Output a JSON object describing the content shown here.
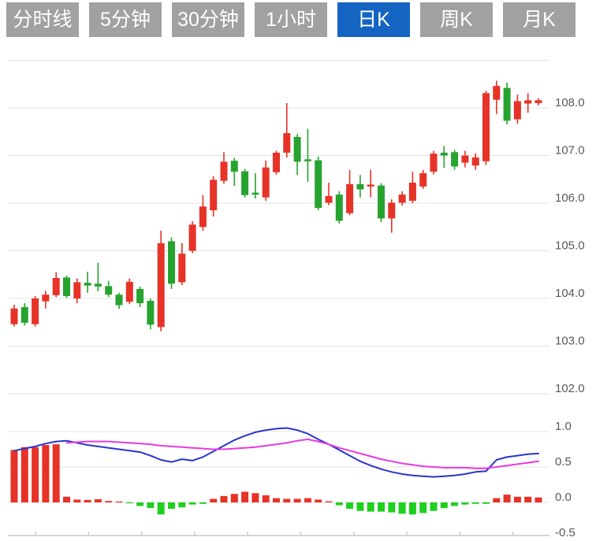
{
  "tab_bar": {
    "tabs": [
      {
        "label": "分时线",
        "active": false
      },
      {
        "label": "5分钟",
        "active": false
      },
      {
        "label": "30分钟",
        "active": false
      },
      {
        "label": "1小时",
        "active": false
      },
      {
        "label": "日K",
        "active": true
      },
      {
        "label": "周K",
        "active": false
      },
      {
        "label": "月K",
        "active": false
      }
    ]
  },
  "colors": {
    "up": "#e73227",
    "down": "#26a32f",
    "macd_up": "#e73227",
    "macd_down": "#1ed01e",
    "dif_line": "#2834cc",
    "dea_line": "#e83ae0",
    "tab_active_bg": "#1464c2",
    "tab_inactive_bg": "#a1a1a1",
    "tab_text": "#ffffff",
    "grid": "#e3e3e3",
    "axis": "#c9c9c9",
    "label": "#595959"
  },
  "chart_data": [
    {
      "type": "candlestick",
      "title": "",
      "ylabel": "price",
      "ylim": [
        102,
        109
      ],
      "grid": true,
      "y_tick_labels": [
        "108.0",
        "107.0",
        "106.0",
        "105.0",
        "104.0",
        "103.0",
        "102.0"
      ],
      "y_tick_values": [
        108,
        107,
        106,
        105,
        104,
        103,
        102
      ],
      "candles": [
        {
          "o": 103.46,
          "h": 103.87,
          "l": 103.41,
          "c": 103.79
        },
        {
          "o": 103.82,
          "h": 103.9,
          "l": 103.43,
          "c": 103.49
        },
        {
          "o": 103.46,
          "h": 104.05,
          "l": 103.41,
          "c": 104.0
        },
        {
          "o": 103.94,
          "h": 104.16,
          "l": 103.79,
          "c": 104.08
        },
        {
          "o": 104.07,
          "h": 104.55,
          "l": 104.03,
          "c": 104.43
        },
        {
          "o": 104.44,
          "h": 104.48,
          "l": 104.01,
          "c": 104.05
        },
        {
          "o": 104.0,
          "h": 104.42,
          "l": 103.9,
          "c": 104.34
        },
        {
          "o": 104.33,
          "h": 104.56,
          "l": 104.12,
          "c": 104.27
        },
        {
          "o": 104.31,
          "h": 104.75,
          "l": 104.15,
          "c": 104.25
        },
        {
          "o": 104.26,
          "h": 104.37,
          "l": 104.03,
          "c": 104.08
        },
        {
          "o": 104.08,
          "h": 104.12,
          "l": 103.78,
          "c": 103.86
        },
        {
          "o": 103.93,
          "h": 104.42,
          "l": 103.88,
          "c": 104.35
        },
        {
          "o": 104.2,
          "h": 104.25,
          "l": 103.82,
          "c": 103.9
        },
        {
          "o": 103.95,
          "h": 104.0,
          "l": 103.35,
          "c": 103.45
        },
        {
          "o": 103.4,
          "h": 105.42,
          "l": 103.31,
          "c": 105.16
        },
        {
          "o": 105.2,
          "h": 105.28,
          "l": 104.2,
          "c": 104.31
        },
        {
          "o": 104.34,
          "h": 105.16,
          "l": 104.28,
          "c": 104.94
        },
        {
          "o": 105.0,
          "h": 105.62,
          "l": 104.95,
          "c": 105.55
        },
        {
          "o": 105.5,
          "h": 106.17,
          "l": 105.42,
          "c": 105.93
        },
        {
          "o": 105.85,
          "h": 106.57,
          "l": 105.72,
          "c": 106.49
        },
        {
          "o": 106.47,
          "h": 107.07,
          "l": 106.41,
          "c": 106.87
        },
        {
          "o": 106.89,
          "h": 106.95,
          "l": 106.36,
          "c": 106.66
        },
        {
          "o": 106.67,
          "h": 106.72,
          "l": 106.12,
          "c": 106.17
        },
        {
          "o": 106.22,
          "h": 106.63,
          "l": 106.1,
          "c": 106.18
        },
        {
          "o": 106.12,
          "h": 106.9,
          "l": 106.05,
          "c": 106.75
        },
        {
          "o": 106.65,
          "h": 107.1,
          "l": 106.6,
          "c": 107.06
        },
        {
          "o": 107.06,
          "h": 108.1,
          "l": 106.96,
          "c": 107.47
        },
        {
          "o": 107.39,
          "h": 107.45,
          "l": 106.59,
          "c": 106.87
        },
        {
          "o": 106.92,
          "h": 107.56,
          "l": 106.45,
          "c": 106.88
        },
        {
          "o": 106.9,
          "h": 106.98,
          "l": 105.85,
          "c": 105.9
        },
        {
          "o": 106.01,
          "h": 106.43,
          "l": 105.96,
          "c": 106.15
        },
        {
          "o": 106.18,
          "h": 106.25,
          "l": 105.57,
          "c": 105.63
        },
        {
          "o": 105.79,
          "h": 106.7,
          "l": 105.75,
          "c": 106.4
        },
        {
          "o": 106.4,
          "h": 106.59,
          "l": 106.12,
          "c": 106.29
        },
        {
          "o": 106.35,
          "h": 106.7,
          "l": 106.12,
          "c": 106.39
        },
        {
          "o": 106.37,
          "h": 106.42,
          "l": 105.6,
          "c": 105.68
        },
        {
          "o": 105.68,
          "h": 106.08,
          "l": 105.38,
          "c": 106.01
        },
        {
          "o": 106.01,
          "h": 106.25,
          "l": 105.95,
          "c": 106.18
        },
        {
          "o": 106.05,
          "h": 106.66,
          "l": 106.0,
          "c": 106.43
        },
        {
          "o": 106.35,
          "h": 106.7,
          "l": 106.3,
          "c": 106.63
        },
        {
          "o": 106.66,
          "h": 107.1,
          "l": 106.6,
          "c": 107.04
        },
        {
          "o": 107.06,
          "h": 107.2,
          "l": 106.74,
          "c": 107.0
        },
        {
          "o": 107.07,
          "h": 107.12,
          "l": 106.7,
          "c": 106.77
        },
        {
          "o": 106.85,
          "h": 107.1,
          "l": 106.75,
          "c": 107.0
        },
        {
          "o": 106.79,
          "h": 107.05,
          "l": 106.7,
          "c": 106.96
        },
        {
          "o": 106.88,
          "h": 108.36,
          "l": 106.8,
          "c": 108.31
        },
        {
          "o": 108.17,
          "h": 108.57,
          "l": 107.87,
          "c": 108.46
        },
        {
          "o": 108.42,
          "h": 108.53,
          "l": 107.65,
          "c": 107.73
        },
        {
          "o": 107.76,
          "h": 108.28,
          "l": 107.67,
          "c": 108.14
        },
        {
          "o": 108.09,
          "h": 108.31,
          "l": 107.9,
          "c": 108.16
        },
        {
          "o": 108.1,
          "h": 108.2,
          "l": 108.05,
          "c": 108.16
        }
      ]
    },
    {
      "type": "macd",
      "title": "",
      "ylim": [
        -0.6,
        1.1
      ],
      "y_tick_labels": [
        "1.0",
        "0.5",
        "0.0",
        "-0.5"
      ],
      "y_tick_values": [
        1.0,
        0.5,
        0.0,
        -0.5
      ],
      "legend_position": "none",
      "histogram": [
        0.74,
        0.78,
        0.78,
        0.81,
        0.82,
        0.08,
        0.04,
        0.035,
        0.045,
        0.02,
        0.012,
        -0.012,
        -0.05,
        -0.08,
        -0.17,
        -0.09,
        -0.07,
        -0.03,
        -0.02,
        0.05,
        0.09,
        0.12,
        0.15,
        0.13,
        0.1,
        0.06,
        0.05,
        0.05,
        0.06,
        0.04,
        0.015,
        -0.04,
        -0.09,
        -0.12,
        -0.13,
        -0.13,
        -0.14,
        -0.16,
        -0.17,
        -0.15,
        -0.12,
        -0.08,
        -0.05,
        -0.03,
        -0.02,
        -0.02,
        0.06,
        0.11,
        0.08,
        0.08,
        0.07
      ],
      "series": [
        {
          "name": "DIF",
          "start_index": 0,
          "values": [
            0.73,
            0.76,
            0.79,
            0.83,
            0.86,
            0.87,
            0.84,
            0.81,
            0.79,
            0.77,
            0.75,
            0.73,
            0.71,
            0.66,
            0.6,
            0.57,
            0.61,
            0.59,
            0.64,
            0.72,
            0.8,
            0.88,
            0.94,
            0.99,
            1.02,
            1.04,
            1.05,
            1.02,
            0.97,
            0.89,
            0.82,
            0.74,
            0.66,
            0.58,
            0.52,
            0.47,
            0.43,
            0.4,
            0.38,
            0.37,
            0.36,
            0.37,
            0.38,
            0.4,
            0.43,
            0.44,
            0.6,
            0.64,
            0.66,
            0.68,
            0.69
          ]
        },
        {
          "name": "DEA",
          "start_index": 5,
          "values": [
            0.84,
            0.85,
            0.86,
            0.86,
            0.86,
            0.85,
            0.84,
            0.83,
            0.82,
            0.8,
            0.79,
            0.78,
            0.77,
            0.76,
            0.75,
            0.75,
            0.76,
            0.77,
            0.78,
            0.8,
            0.82,
            0.84,
            0.87,
            0.89,
            0.86,
            0.82,
            0.77,
            0.73,
            0.69,
            0.65,
            0.61,
            0.58,
            0.55,
            0.53,
            0.51,
            0.5,
            0.49,
            0.49,
            0.49,
            0.48,
            0.48,
            0.5,
            0.52,
            0.54,
            0.56,
            0.58
          ]
        }
      ]
    }
  ]
}
